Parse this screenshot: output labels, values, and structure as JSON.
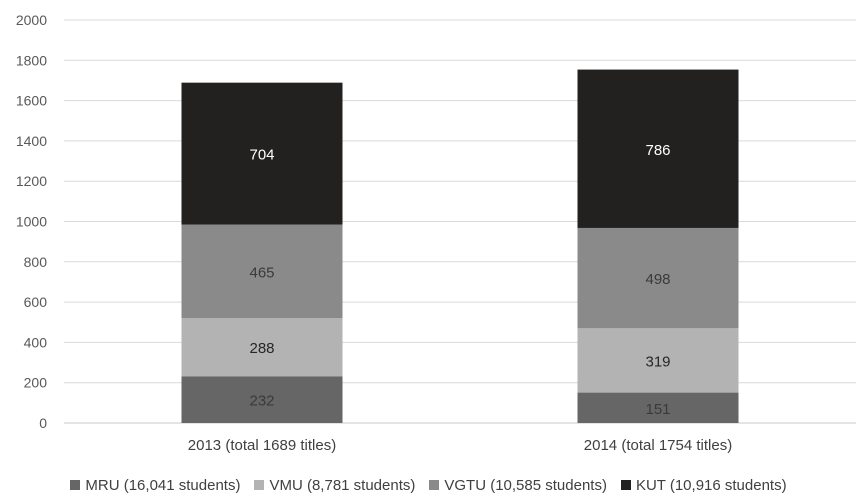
{
  "chart_data": {
    "type": "bar",
    "stacked": true,
    "title": "",
    "xlabel": "",
    "ylabel": "",
    "ylim": [
      0,
      2000
    ],
    "yticks": [
      0,
      200,
      400,
      600,
      800,
      1000,
      1200,
      1400,
      1600,
      1800,
      2000
    ],
    "grid": true,
    "legend_position": "bottom",
    "categories": [
      "2013 (total 1689 titles)",
      "2014 (total 1754 titles)"
    ],
    "series": [
      {
        "name": "MRU (16,041 students)",
        "color": "#666666",
        "label_color": "#3a3a3a",
        "values": [
          232,
          151
        ]
      },
      {
        "name": "VMU (8,781 students)",
        "color": "#b3b3b3",
        "label_color": "#262626",
        "values": [
          288,
          319
        ]
      },
      {
        "name": "VGTU (10,585 students)",
        "color": "#8a8a8a",
        "label_color": "#3a3a3a",
        "values": [
          465,
          498
        ]
      },
      {
        "name": "KUT (10,916 students)",
        "color": "#232020",
        "label_color": "#ffffff",
        "values": [
          704,
          786
        ]
      }
    ]
  }
}
